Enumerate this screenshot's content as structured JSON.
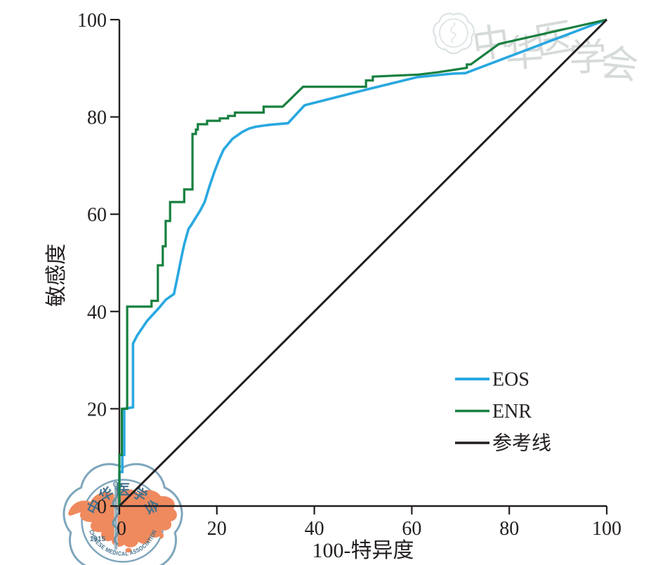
{
  "chart_data": {
    "type": "line",
    "title": "",
    "xlabel": "100-特异度",
    "ylabel": "敏感度",
    "xlim": [
      0,
      100
    ],
    "ylim": [
      0,
      100
    ],
    "x_ticks": [
      0,
      20,
      40,
      60,
      80,
      100
    ],
    "y_ticks": [
      0,
      20,
      40,
      60,
      80,
      100
    ],
    "grid": false,
    "legend_position": "right-center",
    "series": [
      {
        "name": "EOS",
        "color": "#29a8e0",
        "width": 3.6,
        "points": [
          [
            0,
            0
          ],
          [
            0,
            7
          ],
          [
            0.6,
            7
          ],
          [
            0.6,
            10.5
          ],
          [
            1,
            10.5
          ],
          [
            1,
            20
          ],
          [
            2.8,
            20.3
          ],
          [
            2.8,
            33.4
          ],
          [
            3.6,
            35
          ],
          [
            5.7,
            38.1
          ],
          [
            8.1,
            40.7
          ],
          [
            9.5,
            42.4
          ],
          [
            11.2,
            43.6
          ],
          [
            12.1,
            48
          ],
          [
            12.6,
            50.5
          ],
          [
            13.3,
            53.8
          ],
          [
            14.2,
            57
          ],
          [
            14.7,
            57.7
          ],
          [
            16.6,
            60.8
          ],
          [
            17.5,
            62.5
          ],
          [
            18.5,
            65.8
          ],
          [
            19.5,
            68.7
          ],
          [
            20.4,
            71.1
          ],
          [
            21.4,
            73.3
          ],
          [
            23.2,
            75.5
          ],
          [
            25.2,
            76.9
          ],
          [
            26.6,
            77.6
          ],
          [
            28,
            78
          ],
          [
            31,
            78.4
          ],
          [
            34.6,
            78.7
          ],
          [
            38,
            82.4
          ],
          [
            50.6,
            85.6
          ],
          [
            61.2,
            88.2
          ],
          [
            68.4,
            88.9
          ],
          [
            71,
            89
          ],
          [
            100,
            100
          ]
        ]
      },
      {
        "name": "ENR",
        "color": "#17803f",
        "width": 3.2,
        "points": [
          [
            0,
            0
          ],
          [
            0,
            10.5
          ],
          [
            0.5,
            10.5
          ],
          [
            0.5,
            20
          ],
          [
            1.6,
            20
          ],
          [
            1.6,
            41
          ],
          [
            6.6,
            41
          ],
          [
            6.6,
            42.2
          ],
          [
            7.9,
            42.2
          ],
          [
            7.9,
            49.5
          ],
          [
            8.9,
            49.5
          ],
          [
            8.9,
            53.4
          ],
          [
            9.5,
            53.4
          ],
          [
            9.5,
            58.6
          ],
          [
            10.4,
            58.6
          ],
          [
            10.4,
            62.5
          ],
          [
            13.3,
            62.5
          ],
          [
            13.3,
            65.1
          ],
          [
            15,
            65.1
          ],
          [
            15,
            76.5
          ],
          [
            15.7,
            76.5
          ],
          [
            15.7,
            77.4
          ],
          [
            16.1,
            77.4
          ],
          [
            16.1,
            78.5
          ],
          [
            18,
            78.5
          ],
          [
            18,
            79.2
          ],
          [
            20.6,
            79.2
          ],
          [
            20.6,
            79.7
          ],
          [
            22.3,
            79.7
          ],
          [
            22.3,
            80.2
          ],
          [
            23.7,
            80.2
          ],
          [
            23.7,
            80.9
          ],
          [
            29.6,
            80.9
          ],
          [
            29.6,
            82.1
          ],
          [
            33.5,
            82.1
          ],
          [
            37.7,
            86.2
          ],
          [
            50.6,
            86.2
          ],
          [
            50.6,
            87.5
          ],
          [
            52,
            87.5
          ],
          [
            52,
            88.3
          ],
          [
            61.3,
            88.7
          ],
          [
            65.5,
            89.2
          ],
          [
            71.3,
            90.1
          ],
          [
            71.3,
            90.8
          ],
          [
            72.1,
            90.8
          ],
          [
            77.9,
            95
          ],
          [
            100,
            100
          ]
        ]
      },
      {
        "name": "参考线",
        "color": "#231f20",
        "width": 3,
        "points": [
          [
            0,
            0
          ],
          [
            100,
            100
          ]
        ]
      }
    ]
  },
  "watermark": {
    "script_text": "中华医学会",
    "logo_top_text": "中华医学会",
    "logo_bottom_text": "CHINESE MEDICAL ASSOCIATION",
    "logo_year": "1915"
  },
  "colors": {
    "axis": "#231f20",
    "eos": "#29a8e0",
    "enr": "#17803f",
    "reference": "#231f20",
    "logo_outline": "#7ea6bc",
    "logo_text": "#44718c",
    "logo_map": "#ef8a5e",
    "logo_snake": "#6f94a6",
    "watermark_gray": "#d6dbd9"
  }
}
